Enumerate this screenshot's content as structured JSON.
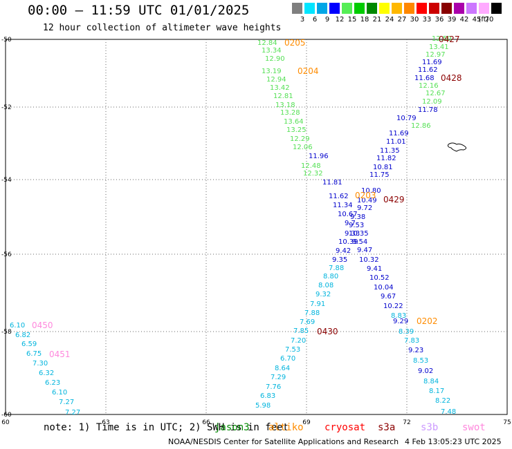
{
  "title": "00:00 – 11:59 UTC 01/01/2025",
  "subtitle": "12 hour collection of altimeter wave heights",
  "legend": {
    "unit": "(ft)",
    "bins": [
      {
        "label": "3",
        "color": "#7f7f7f"
      },
      {
        "label": "6",
        "color": "#00e5ff"
      },
      {
        "label": "9",
        "color": "#00a6e6"
      },
      {
        "label": "12",
        "color": "#0000ff"
      },
      {
        "label": "15",
        "color": "#55ee55"
      },
      {
        "label": "18",
        "color": "#00cc00"
      },
      {
        "label": "21",
        "color": "#008800"
      },
      {
        "label": "24",
        "color": "#ffff00"
      },
      {
        "label": "27",
        "color": "#ffb800"
      },
      {
        "label": "30",
        "color": "#ff8800"
      },
      {
        "label": "33",
        "color": "#ff0000"
      },
      {
        "label": "36",
        "color": "#cc0000"
      },
      {
        "label": "39",
        "color": "#880000"
      },
      {
        "label": "42",
        "color": "#aa00aa"
      },
      {
        "label": "45",
        "color": "#cc77ff"
      },
      {
        "label": "70",
        "color": "#ffaaff"
      },
      {
        "label": "",
        "color": "#000000"
      }
    ]
  },
  "axes": {
    "lat_ticks": [
      "-50",
      "-52",
      "-54",
      "-56",
      "-58",
      "-60"
    ],
    "lon_ticks": [
      "60",
      "63",
      "66",
      "69",
      "72",
      "75"
    ],
    "lat_range": [
      -60,
      -50
    ],
    "lon_range": [
      60,
      75
    ]
  },
  "tracks": [
    {
      "satellite": "altiko",
      "color": "#ff8c00",
      "time_labels": [
        "0205",
        "0204",
        "0203",
        "0202"
      ]
    },
    {
      "satellite": "s3a",
      "color": "#8b0000",
      "time_labels": [
        "0427",
        "0428",
        "0429",
        "0430"
      ]
    },
    {
      "satellite": "swot",
      "color": "#ff88dd",
      "time_labels": [
        "0450",
        "0451"
      ]
    }
  ],
  "observations": {
    "track_a_green": [
      "12.84",
      "13.34",
      "12.90",
      "13.19",
      "12.94",
      "13.42",
      "12.81",
      "13.18",
      "13.28",
      "13.64",
      "13.25",
      "12.29",
      "12.06",
      "12.48",
      "12.32"
    ],
    "track_a_blue": [
      "11.96",
      "11.81",
      "11.62",
      "11.34",
      "10.67",
      "9.7",
      "9.33",
      "10.39",
      "9.42",
      "9.35"
    ],
    "track_a_cyan": [
      "7.88",
      "8.80",
      "8.08",
      "9.32",
      "7.91",
      "7.88",
      "7.69",
      "7.85",
      "7.20",
      "7.53",
      "6.70",
      "8.64",
      "7.29",
      "7.76",
      "6.83",
      "5.98"
    ],
    "track_b_green": [
      "12.50",
      "13.41",
      "12.97",
      "12.16",
      "12.67",
      "12.09",
      "12.86"
    ],
    "track_b_blue": [
      "11.69",
      "11.62",
      "11.68",
      "11.78",
      "10.79",
      "11.69",
      "11.01",
      "11.35",
      "11.82",
      "10.81",
      "11.75",
      "10.80",
      "10.49",
      "9.72",
      "9.38",
      "9.53",
      "10.35",
      "9.54",
      "9.47",
      "10.32",
      "9.41",
      "10.52",
      "10.04",
      "9.67",
      "10.22",
      "9.29",
      "9.23",
      "9.02"
    ],
    "track_b_cyan": [
      "8.83",
      "8.39",
      "7.83",
      "8.53",
      "8.84",
      "8.17",
      "8.22",
      "7.48"
    ],
    "track_c_cyan": [
      "6.10",
      "6.82",
      "6.59",
      "6.75",
      "7.30",
      "6.32",
      "6.23",
      "6.10",
      "7.27",
      "7.27"
    ]
  },
  "note": "note: 1) Time is in UTC; 2) SWH is in feet",
  "satellites": [
    {
      "name": "jason3",
      "color": "#008800"
    },
    {
      "name": "altiko",
      "color": "#ff8c00"
    },
    {
      "name": "cryosat",
      "color": "#ff0000"
    },
    {
      "name": "s3a",
      "color": "#8b0000"
    },
    {
      "name": "s3b",
      "color": "#cc99ff"
    },
    {
      "name": "swot",
      "color": "#ff88dd"
    }
  ],
  "credit": "NOAA/NESDIS Center for Satellite Applications and Research",
  "timestamp": "4 Feb 13:05:23 UTC 2025"
}
